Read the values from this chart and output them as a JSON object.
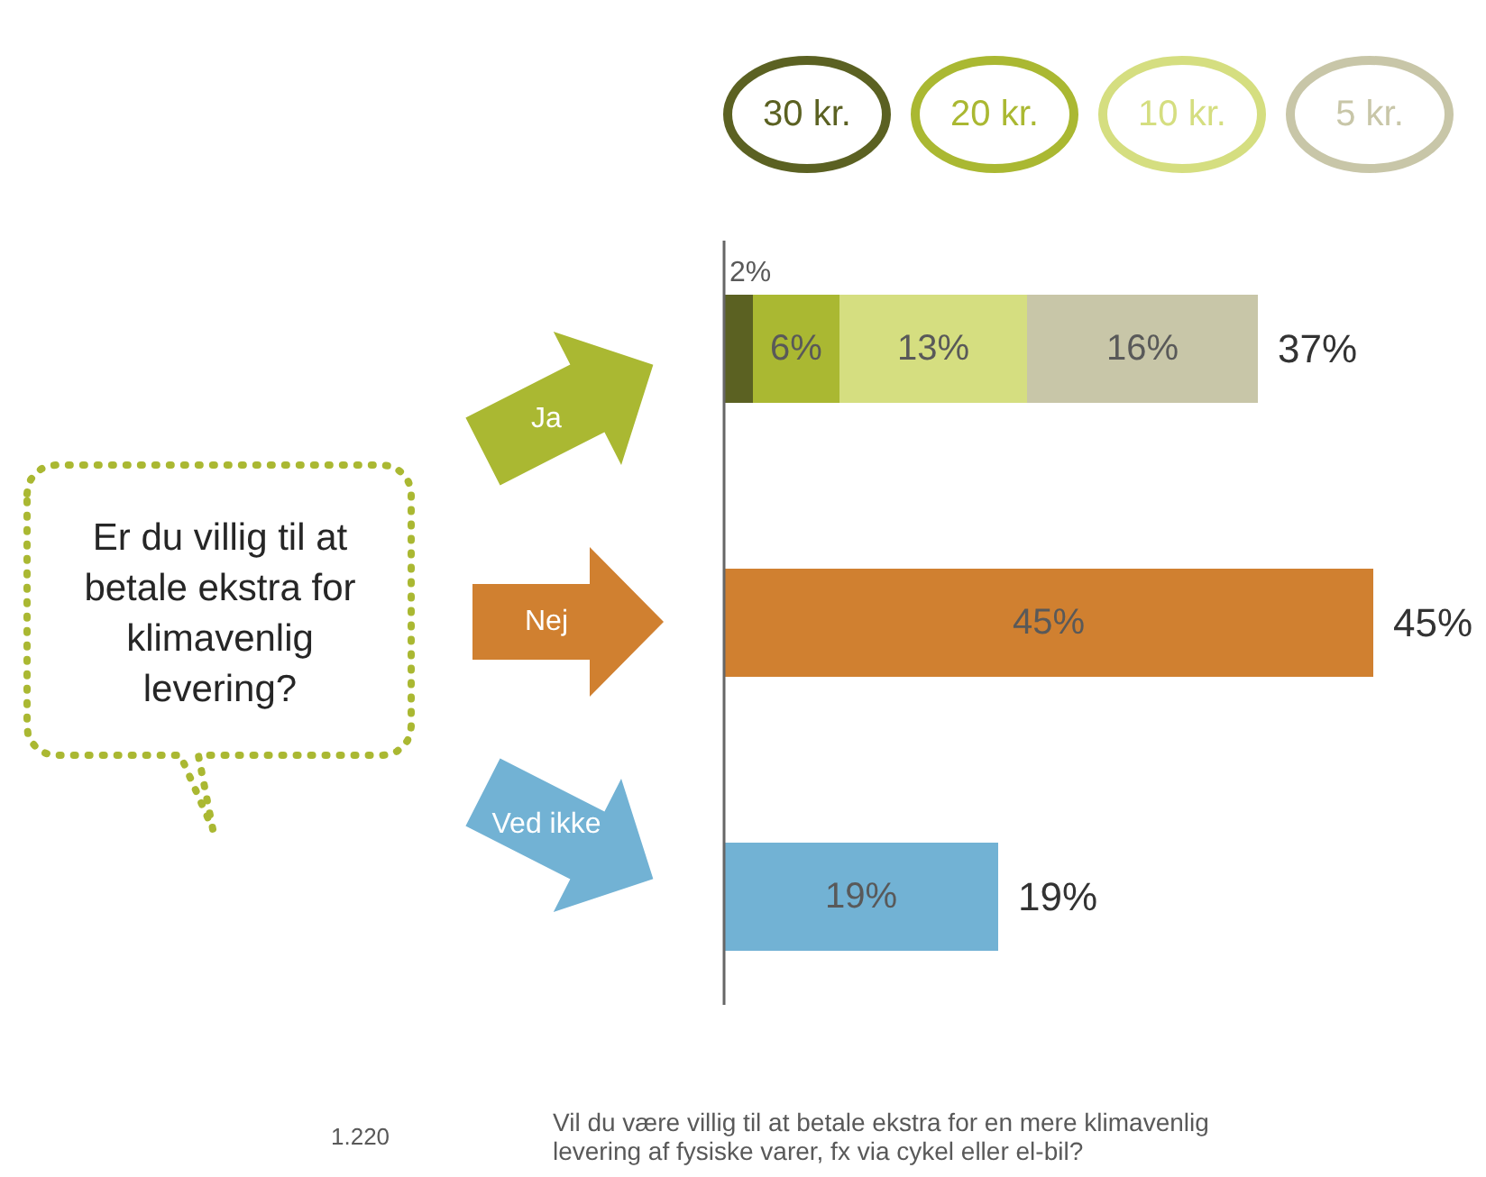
{
  "chart_data": {
    "type": "bar",
    "orientation": "horizontal",
    "stacked": true,
    "title": "Er du villig til at betale ekstra for klimavenlig levering?",
    "categories": [
      "Ja",
      "Nej",
      "Ved ikke"
    ],
    "series": [
      {
        "name": "30 kr.",
        "color": "#5b6122",
        "values": [
          2,
          null,
          null
        ],
        "value_labels": [
          "2%",
          null,
          null
        ]
      },
      {
        "name": "20 kr.",
        "color": "#aab832",
        "values": [
          6,
          null,
          null
        ],
        "value_labels": [
          "6%",
          null,
          null
        ]
      },
      {
        "name": "10 kr.",
        "color": "#d5de80",
        "values": [
          13,
          null,
          null
        ],
        "value_labels": [
          "13%",
          null,
          null
        ]
      },
      {
        "name": "5 kr.",
        "color": "#c8c6a8",
        "values": [
          16,
          null,
          null
        ],
        "value_labels": [
          "16%",
          null,
          null
        ]
      },
      {
        "color": "#d08030",
        "values": [
          null,
          45,
          null
        ],
        "value_labels": [
          null,
          "45%",
          null
        ]
      },
      {
        "color": "#72b2d4",
        "values": [
          null,
          null,
          19
        ],
        "value_labels": [
          null,
          null,
          "19%"
        ]
      }
    ],
    "totals": [
      "37%",
      "45%",
      "19%"
    ],
    "legend": "top",
    "annotations": [
      "1.220",
      "Vil du være villig til at betale ekstra for en mere klimavenlig levering af fysiske varer, fx via cykel eller el-bil?"
    ]
  }
}
